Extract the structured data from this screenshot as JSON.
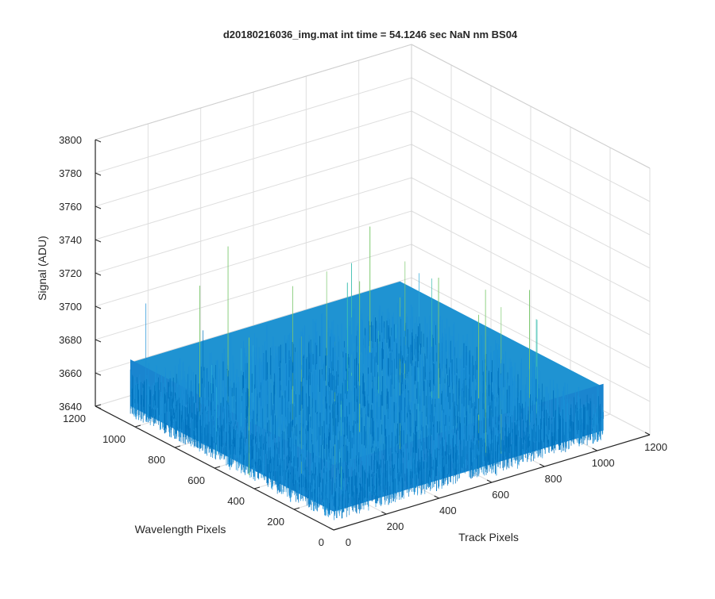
{
  "chart_data": {
    "type": "surface",
    "title": "d20180216036_img.mat int time = 54.1246 sec  NaN nm BS04",
    "xlabel": "Track Pixels",
    "ylabel": "Wavelength Pixels",
    "zlabel": "Signal (ADU)",
    "xlim": [
      0,
      1200
    ],
    "ylim": [
      0,
      1200
    ],
    "zlim": [
      3640,
      3800
    ],
    "xticks": [
      "0",
      "200",
      "400",
      "600",
      "800",
      "1000",
      "1200"
    ],
    "yticks": [
      "0",
      "200",
      "400",
      "600",
      "800",
      "1000",
      "1200"
    ],
    "zticks": [
      "3640",
      "3660",
      "3680",
      "3700",
      "3720",
      "3740",
      "3760",
      "3780",
      "3800"
    ],
    "grid": true,
    "surface": {
      "x_range": [
        0,
        1024
      ],
      "y_range": [
        0,
        1024
      ],
      "base_level": 3665,
      "noise_min": 3645,
      "noise_max": 3745,
      "colormap": [
        "#0072bd",
        "#1a8fd6",
        "#29a8d8",
        "#3fbfb0",
        "#7cc86e"
      ]
    }
  }
}
